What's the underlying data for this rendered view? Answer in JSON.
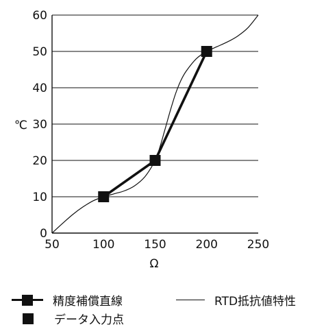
{
  "chart_data": {
    "type": "line",
    "xlabel": "Ω",
    "ylabel": "℃",
    "xlim": [
      50,
      250
    ],
    "ylim": [
      0,
      60
    ],
    "xticks": [
      50,
      100,
      150,
      200,
      250
    ],
    "yticks": [
      0,
      10,
      20,
      30,
      40,
      50,
      60
    ],
    "grid": "horizontal",
    "series": [
      {
        "name": "RTD抵抗値特性",
        "style": "thin",
        "x": [
          50,
          60,
          70,
          80,
          90,
          100,
          110,
          120,
          130,
          140,
          150,
          155,
          160,
          165,
          170,
          175,
          180,
          190,
          200,
          210,
          220,
          230,
          240,
          250
        ],
        "y": [
          0,
          2.6,
          5.1,
          7.2,
          8.9,
          10,
          10.8,
          11.6,
          13,
          15.5,
          20,
          24,
          29,
          34,
          38.5,
          42,
          44.5,
          48,
          50,
          51.3,
          52.6,
          54.2,
          56.5,
          60
        ]
      },
      {
        "name": "精度補償直線",
        "style": "thick",
        "x": [
          100,
          150,
          200
        ],
        "y": [
          10,
          20,
          50
        ]
      }
    ],
    "points": {
      "name": "データ入力点",
      "x": [
        100,
        150,
        200
      ],
      "y": [
        10,
        20,
        50
      ]
    },
    "legend": {
      "position": "bottom",
      "comp_label": "精度補償直線",
      "rtd_label": "RTD抵抗値特性",
      "points_label": "データ入力点"
    }
  }
}
